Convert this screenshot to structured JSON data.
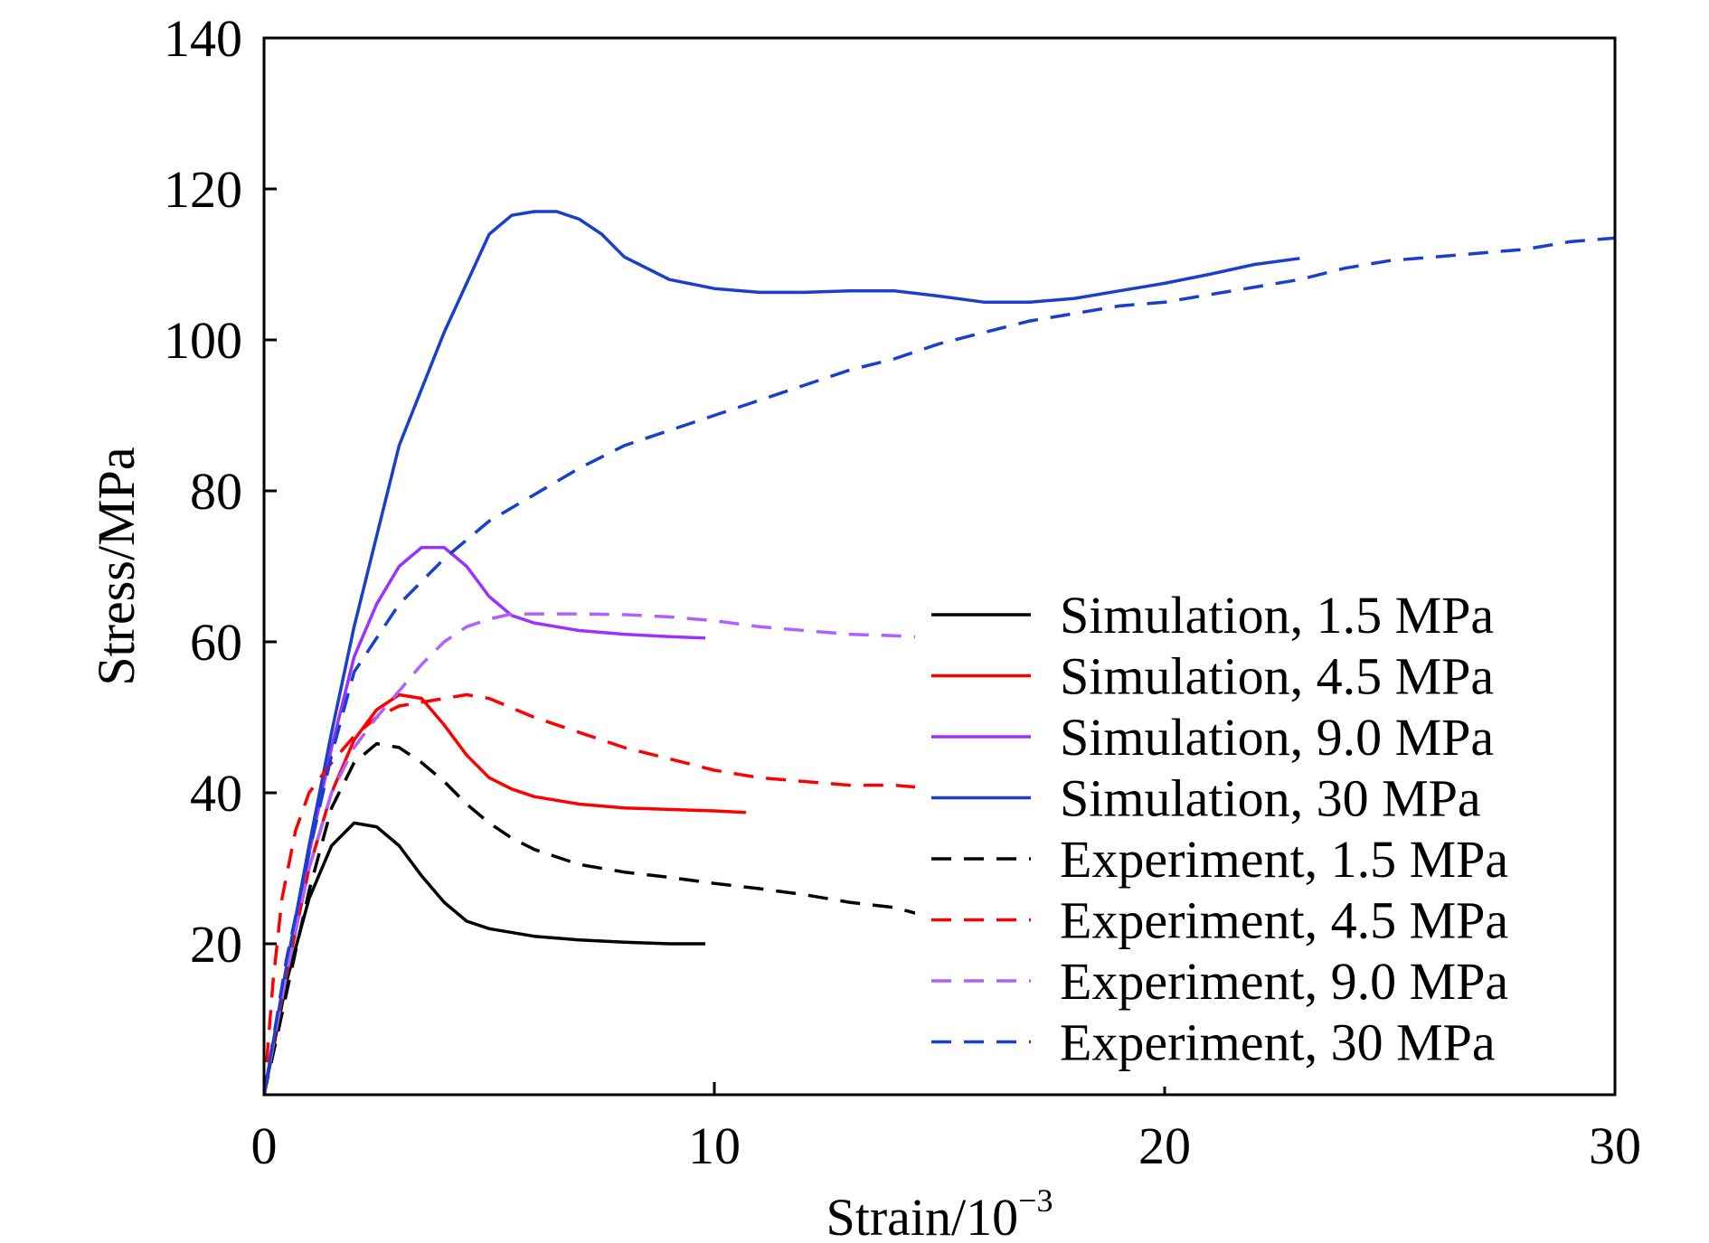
{
  "chart_data": {
    "type": "line",
    "xlabel": "Strain/10",
    "xlabel_sup": "−3",
    "ylabel": "Stress/MPa",
    "xlim": [
      0,
      30
    ],
    "ylim": [
      0,
      140
    ],
    "xticks": [
      0,
      10,
      20,
      30
    ],
    "xtick_labels": [
      "0",
      "10",
      "20",
      "30"
    ],
    "yticks": [
      20,
      40,
      60,
      80,
      100,
      120,
      140
    ],
    "ytick_labels": [
      "20",
      "40",
      "60",
      "80",
      "100",
      "120",
      "140"
    ],
    "grid": false,
    "legend_position": "lower-right",
    "series": [
      {
        "name": "Simulation, 1.5 MPa",
        "color": "#000000",
        "dash": "solid",
        "x": [
          0,
          0.5,
          1.0,
          1.5,
          2.0,
          2.5,
          3.0,
          3.5,
          4.0,
          4.5,
          5.0,
          6.0,
          7.0,
          8.0,
          9.0,
          9.8
        ],
        "y": [
          0,
          15,
          26,
          33,
          36,
          35.5,
          33,
          29,
          25.5,
          23,
          22,
          21,
          20.5,
          20.2,
          20,
          20
        ]
      },
      {
        "name": "Simulation, 4.5 MPa",
        "color": "#ff0000",
        "dash": "solid",
        "x": [
          0,
          0.5,
          1.0,
          1.5,
          2.0,
          2.5,
          3.0,
          3.5,
          4.0,
          4.5,
          5.0,
          5.5,
          6.0,
          7.0,
          8.0,
          9.0,
          10.0,
          10.7
        ],
        "y": [
          0,
          16,
          30,
          40,
          47,
          51,
          53,
          52.5,
          49,
          45,
          42,
          40.5,
          39.5,
          38.5,
          38,
          37.8,
          37.6,
          37.4
        ]
      },
      {
        "name": "Simulation, 9.0 MPa",
        "color": "#9933ff",
        "dash": "solid",
        "x": [
          0,
          0.5,
          1.0,
          1.5,
          2.0,
          2.5,
          3.0,
          3.5,
          4.0,
          4.5,
          5.0,
          5.5,
          6.0,
          6.5,
          7.0,
          8.0,
          9.0,
          9.8
        ],
        "y": [
          0,
          17,
          32,
          46,
          58,
          65,
          70,
          72.5,
          72.5,
          70,
          66,
          63.5,
          62.5,
          62,
          61.5,
          61,
          60.7,
          60.5
        ]
      },
      {
        "name": "Simulation, 30 MPa",
        "color": "#1a3fcc",
        "dash": "solid",
        "x": [
          0,
          0.5,
          1.0,
          1.5,
          2.0,
          3.0,
          4.0,
          5.0,
          5.5,
          6.0,
          6.5,
          7.0,
          7.5,
          8.0,
          9.0,
          10.0,
          11.0,
          12.0,
          13.0,
          14.0,
          15.0,
          16.0,
          17.0,
          18.0,
          19.0,
          20.0,
          21.0,
          22.0,
          23.0
        ],
        "y": [
          0,
          17,
          33,
          48,
          62,
          86,
          101,
          114,
          116.5,
          117,
          117,
          116,
          114,
          111,
          108,
          106.8,
          106.3,
          106.3,
          106.5,
          106.5,
          105.8,
          105,
          105,
          105.5,
          106.5,
          107.5,
          108.7,
          110,
          110.8
        ]
      },
      {
        "name": "Experiment, 1.5 MPa",
        "color": "#000000",
        "dash": "dashed",
        "x": [
          0,
          0.3,
          0.7,
          1.0,
          1.5,
          2.0,
          2.5,
          3.0,
          3.5,
          4.0,
          4.5,
          5.0,
          5.5,
          6.0,
          7.0,
          8.0,
          9.0,
          10.0,
          11.0,
          12.0,
          13.0,
          14.0,
          14.5
        ],
        "y": [
          0,
          8,
          19,
          27,
          38,
          44,
          46.5,
          46,
          44,
          41.5,
          38.5,
          36,
          34,
          32.5,
          30.5,
          29.5,
          28.8,
          28,
          27.3,
          26.5,
          25.5,
          24.8,
          24
        ]
      },
      {
        "name": "Experiment, 4.5 MPa",
        "color": "#ff0000",
        "dash": "dashed",
        "x": [
          0,
          0.2,
          0.4,
          0.7,
          1.0,
          1.5,
          2.0,
          2.5,
          3.0,
          3.5,
          4.0,
          4.5,
          5.0,
          6.0,
          7.0,
          8.0,
          9.0,
          10.0,
          11.0,
          12.0,
          13.0,
          14.0,
          15.0
        ],
        "y": [
          0,
          15,
          26,
          35,
          40,
          44,
          47.5,
          50,
          51.5,
          52,
          52.5,
          53,
          52.5,
          50,
          48,
          46,
          44.5,
          43,
          42,
          41.5,
          41,
          41,
          40.5
        ]
      },
      {
        "name": "Experiment, 9.0 MPa",
        "color": "#b060ff",
        "dash": "dashed",
        "x": [
          0,
          0.5,
          1.0,
          1.5,
          2.0,
          2.5,
          3.0,
          3.5,
          4.0,
          4.5,
          5.0,
          5.5,
          6.0,
          7.0,
          8.0,
          9.0,
          10.0,
          11.0,
          12.0,
          13.0,
          14.0,
          15.0
        ],
        "y": [
          0,
          16,
          30,
          40,
          46,
          50,
          53.5,
          57,
          60,
          62,
          63,
          63.7,
          63.7,
          63.7,
          63.6,
          63.3,
          62.8,
          62,
          61.5,
          61,
          60.8,
          60.5
        ]
      },
      {
        "name": "Experiment, 30 MPa",
        "color": "#1a3fcc",
        "dash": "dashed",
        "x": [
          0,
          0.5,
          1.0,
          1.5,
          2.0,
          3.0,
          4.0,
          5.0,
          6.0,
          7.0,
          8.0,
          9.0,
          10.0,
          11.0,
          12.0,
          13.0,
          14.0,
          15.0,
          16.0,
          17.0,
          18.0,
          19.0,
          20.0,
          21.0,
          22.0,
          23.0,
          24.0,
          25.0,
          26.0,
          27.0,
          28.0,
          29.0,
          30.0
        ],
        "y": [
          0,
          18,
          32,
          45,
          56,
          65,
          71,
          76,
          79.5,
          83,
          86,
          88,
          90,
          92,
          94,
          96,
          97.5,
          99.5,
          101,
          102.5,
          103.5,
          104.5,
          105,
          106,
          107,
          108,
          109.5,
          110.5,
          111,
          111.5,
          112,
          113,
          113.5
        ]
      }
    ]
  }
}
